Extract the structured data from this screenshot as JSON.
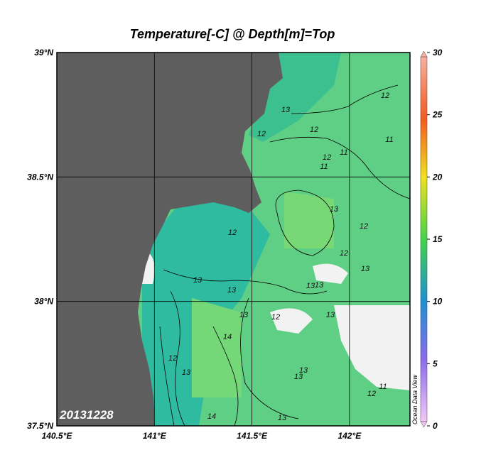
{
  "title": "Temperature[-C] @ Depth[m]=Top",
  "date_label": "20131228",
  "watermark": "Ocean Data View",
  "map": {
    "xlim": [
      140.5,
      142.31
    ],
    "ylim": [
      37.5,
      39
    ],
    "xticks": [
      {
        "value": 140.5,
        "label": "140.5°E"
      },
      {
        "value": 141,
        "label": "141°E"
      },
      {
        "value": 141.5,
        "label": "141.5°E"
      },
      {
        "value": 142,
        "label": "142°E"
      }
    ],
    "yticks": [
      {
        "value": 37.5,
        "label": "37.5°N"
      },
      {
        "value": 38,
        "label": "38°N"
      },
      {
        "value": 38.5,
        "label": "38.5°N"
      },
      {
        "value": 39,
        "label": "39°N"
      }
    ]
  },
  "colorbar": {
    "lim": [
      0,
      30
    ],
    "ticks": [
      0,
      5,
      10,
      15,
      20,
      25,
      30
    ]
  },
  "contour_labels": [
    "13",
    "12",
    "12",
    "11",
    "11",
    "12",
    "11",
    "13",
    "12",
    "12",
    "13",
    "12",
    "13",
    "13",
    "13",
    "12",
    "13",
    "13",
    "14",
    "12",
    "13",
    "13",
    "14",
    "13",
    "13",
    "11",
    "12",
    "13",
    "12"
  ]
}
